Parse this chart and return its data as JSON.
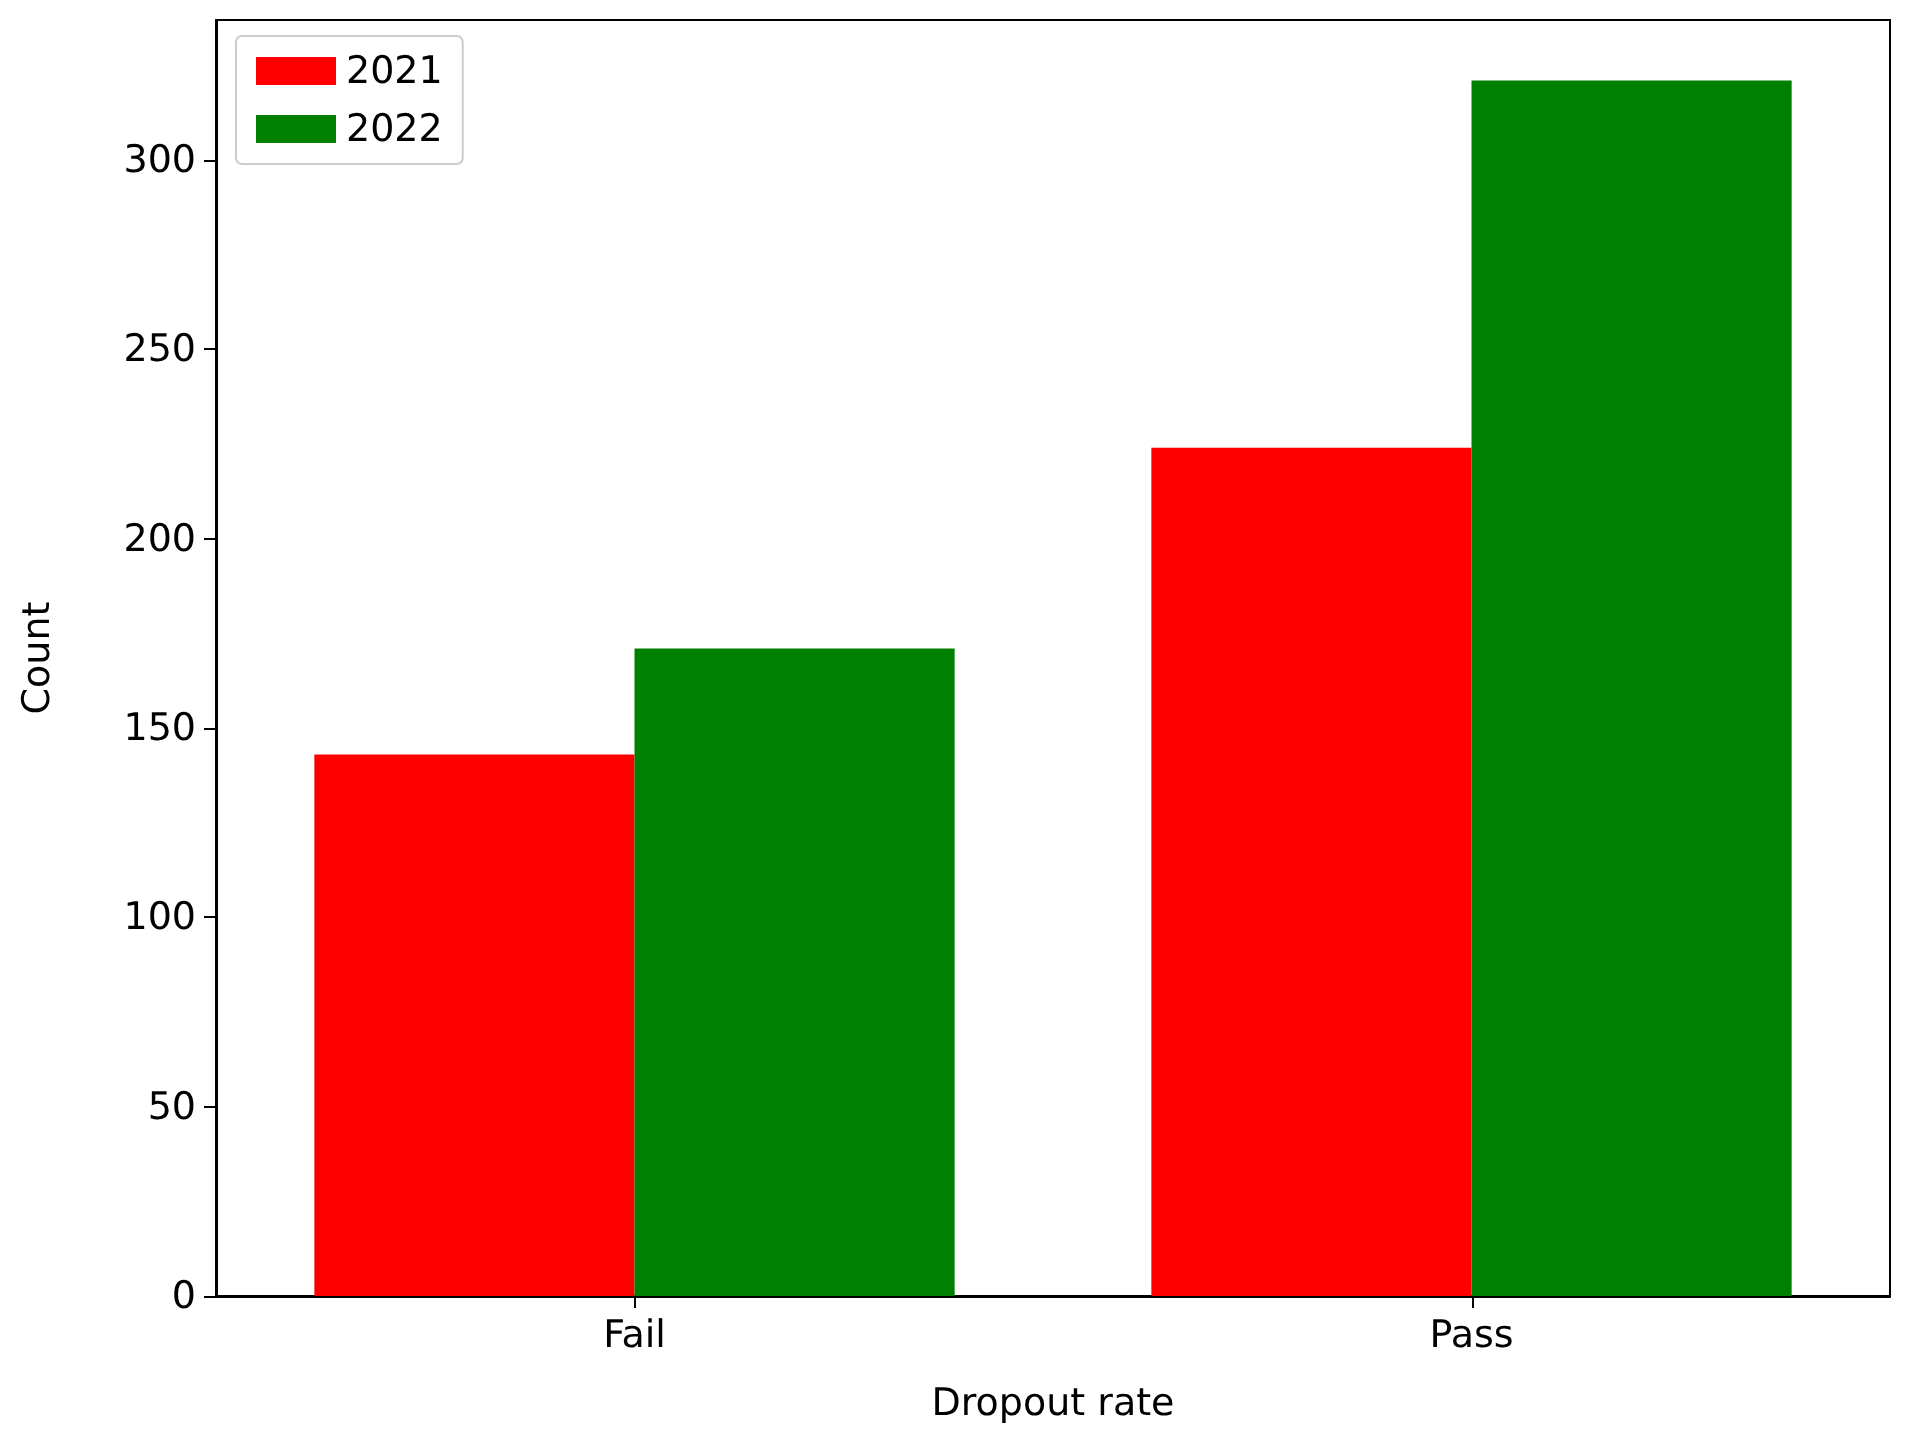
{
  "chart_data": {
    "type": "bar",
    "xlabel": "Dropout rate",
    "ylabel": "Count",
    "categories": [
      "Fail",
      "Pass"
    ],
    "series": [
      {
        "name": "2021",
        "color": "#ff0000",
        "values": [
          143,
          224
        ]
      },
      {
        "name": "2022",
        "color": "#008000",
        "values": [
          171,
          321
        ]
      }
    ],
    "ylim": [
      0,
      337
    ],
    "yticks": [
      0,
      50,
      100,
      150,
      200,
      250,
      300
    ],
    "legend": "top left"
  }
}
